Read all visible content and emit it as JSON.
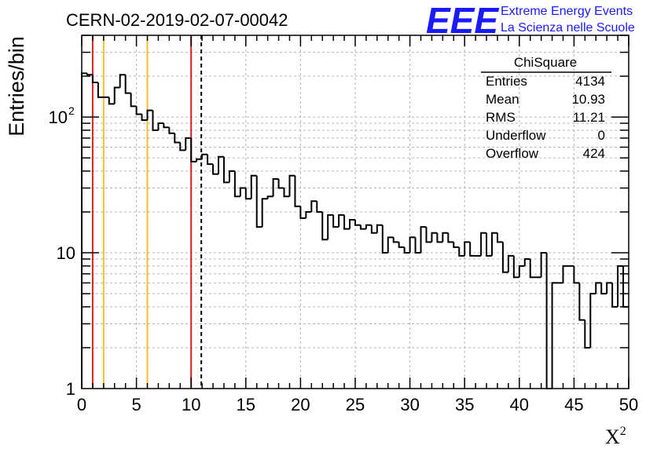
{
  "chart_data": {
    "type": "histogram",
    "title": "CERN-02-2019-02-07-00042",
    "xlabel": "X",
    "xlabel_superscript": "2",
    "ylabel": "Entries/bin",
    "xlim": [
      0,
      50
    ],
    "ylim": [
      1,
      400
    ],
    "y_scale": "log",
    "grid": true,
    "x_tick_labels": [
      "0",
      "5",
      "10",
      "15",
      "20",
      "25",
      "30",
      "35",
      "40",
      "45",
      "50"
    ],
    "y_tick_labels": [
      "1",
      "10",
      "10"
    ],
    "y_tick_superscript": "2",
    "bin_width": 0.5,
    "bins": [
      {
        "x": 0.0,
        "y": 210
      },
      {
        "x": 0.5,
        "y": 205
      },
      {
        "x": 1.0,
        "y": 180
      },
      {
        "x": 1.5,
        "y": 140
      },
      {
        "x": 2.0,
        "y": 140
      },
      {
        "x": 2.5,
        "y": 125
      },
      {
        "x": 3.0,
        "y": 165
      },
      {
        "x": 3.5,
        "y": 205
      },
      {
        "x": 4.0,
        "y": 150
      },
      {
        "x": 4.5,
        "y": 120
      },
      {
        "x": 5.0,
        "y": 105
      },
      {
        "x": 5.5,
        "y": 95
      },
      {
        "x": 6.0,
        "y": 112
      },
      {
        "x": 6.5,
        "y": 80
      },
      {
        "x": 7.0,
        "y": 90
      },
      {
        "x": 7.5,
        "y": 84
      },
      {
        "x": 8.0,
        "y": 76
      },
      {
        "x": 8.5,
        "y": 65
      },
      {
        "x": 9.0,
        "y": 57
      },
      {
        "x": 9.5,
        "y": 70
      },
      {
        "x": 10.0,
        "y": 47
      },
      {
        "x": 10.5,
        "y": 49
      },
      {
        "x": 11.0,
        "y": 53
      },
      {
        "x": 11.5,
        "y": 45
      },
      {
        "x": 12.0,
        "y": 38
      },
      {
        "x": 12.5,
        "y": 51
      },
      {
        "x": 13.0,
        "y": 33
      },
      {
        "x": 13.5,
        "y": 40
      },
      {
        "x": 14.0,
        "y": 26
      },
      {
        "x": 14.5,
        "y": 30
      },
      {
        "x": 15.0,
        "y": 25
      },
      {
        "x": 15.5,
        "y": 37
      },
      {
        "x": 16.0,
        "y": 15.5
      },
      {
        "x": 16.5,
        "y": 25
      },
      {
        "x": 17.0,
        "y": 26
      },
      {
        "x": 17.5,
        "y": 35
      },
      {
        "x": 18.0,
        "y": 30
      },
      {
        "x": 18.5,
        "y": 26
      },
      {
        "x": 19.0,
        "y": 37
      },
      {
        "x": 19.5,
        "y": 22
      },
      {
        "x": 20.0,
        "y": 18
      },
      {
        "x": 20.5,
        "y": 20
      },
      {
        "x": 21.0,
        "y": 24
      },
      {
        "x": 21.5,
        "y": 20
      },
      {
        "x": 22.0,
        "y": 12.5
      },
      {
        "x": 22.5,
        "y": 19
      },
      {
        "x": 23.0,
        "y": 15.5
      },
      {
        "x": 23.5,
        "y": 19
      },
      {
        "x": 24.0,
        "y": 15
      },
      {
        "x": 24.5,
        "y": 17.5
      },
      {
        "x": 25.0,
        "y": 16
      },
      {
        "x": 25.5,
        "y": 15
      },
      {
        "x": 26.0,
        "y": 16
      },
      {
        "x": 26.5,
        "y": 14
      },
      {
        "x": 27.0,
        "y": 16
      },
      {
        "x": 27.5,
        "y": 10
      },
      {
        "x": 28.0,
        "y": 13
      },
      {
        "x": 28.5,
        "y": 12
      },
      {
        "x": 29.0,
        "y": 11
      },
      {
        "x": 29.5,
        "y": 10
      },
      {
        "x": 30.0,
        "y": 13
      },
      {
        "x": 30.5,
        "y": 10
      },
      {
        "x": 31.0,
        "y": 15.5
      },
      {
        "x": 31.5,
        "y": 12
      },
      {
        "x": 32.0,
        "y": 14
      },
      {
        "x": 32.5,
        "y": 12
      },
      {
        "x": 33.0,
        "y": 14
      },
      {
        "x": 33.5,
        "y": 12
      },
      {
        "x": 34.0,
        "y": 11
      },
      {
        "x": 34.5,
        "y": 9.5
      },
      {
        "x": 35.0,
        "y": 12
      },
      {
        "x": 35.5,
        "y": 9.5
      },
      {
        "x": 36.0,
        "y": 9.5
      },
      {
        "x": 36.5,
        "y": 14
      },
      {
        "x": 37.0,
        "y": 9.5
      },
      {
        "x": 37.5,
        "y": 14
      },
      {
        "x": 38.0,
        "y": 12
      },
      {
        "x": 38.5,
        "y": 7.2
      },
      {
        "x": 39.0,
        "y": 9.5
      },
      {
        "x": 39.5,
        "y": 6.6
      },
      {
        "x": 40.0,
        "y": 8
      },
      {
        "x": 40.5,
        "y": 9
      },
      {
        "x": 41.0,
        "y": 6.6
      },
      {
        "x": 41.5,
        "y": 6.6
      },
      {
        "x": 42.0,
        "y": 10
      },
      {
        "x": 42.5,
        "y": 0.8
      },
      {
        "x": 43.0,
        "y": 6
      },
      {
        "x": 43.5,
        "y": 6
      },
      {
        "x": 44.0,
        "y": 8
      },
      {
        "x": 44.5,
        "y": 8
      },
      {
        "x": 45.0,
        "y": 6
      },
      {
        "x": 45.5,
        "y": 3.2
      },
      {
        "x": 46.0,
        "y": 2
      },
      {
        "x": 46.5,
        "y": 5
      },
      {
        "x": 47.0,
        "y": 6
      },
      {
        "x": 47.5,
        "y": 5
      },
      {
        "x": 48.0,
        "y": 6
      },
      {
        "x": 48.5,
        "y": 4
      },
      {
        "x": 49.0,
        "y": 8
      },
      {
        "x": 49.5,
        "y": 4
      }
    ],
    "vertical_lines": [
      {
        "x": 1,
        "color": "#d42020",
        "style": "solid"
      },
      {
        "x": 2,
        "color": "#f0c030",
        "style": "solid"
      },
      {
        "x": 6,
        "color": "#f0c030",
        "style": "solid"
      },
      {
        "x": 10,
        "color": "#d42020",
        "style": "solid"
      },
      {
        "x": 10.93,
        "color": "#000000",
        "style": "dashed"
      }
    ],
    "stats": {
      "name": "ChiSquare",
      "rows": [
        {
          "label": "Entries",
          "value": "4134"
        },
        {
          "label": "Mean",
          "value": "10.93"
        },
        {
          "label": "RMS",
          "value": "11.21"
        },
        {
          "label": "Underflow",
          "value": "0"
        },
        {
          "label": "Overflow",
          "value": "424"
        }
      ]
    }
  },
  "logo": {
    "letters": "EEE",
    "line1": "Extreme Energy Events",
    "line2": "La Scienza nelle Scuole",
    "color": "#1a1aff"
  }
}
